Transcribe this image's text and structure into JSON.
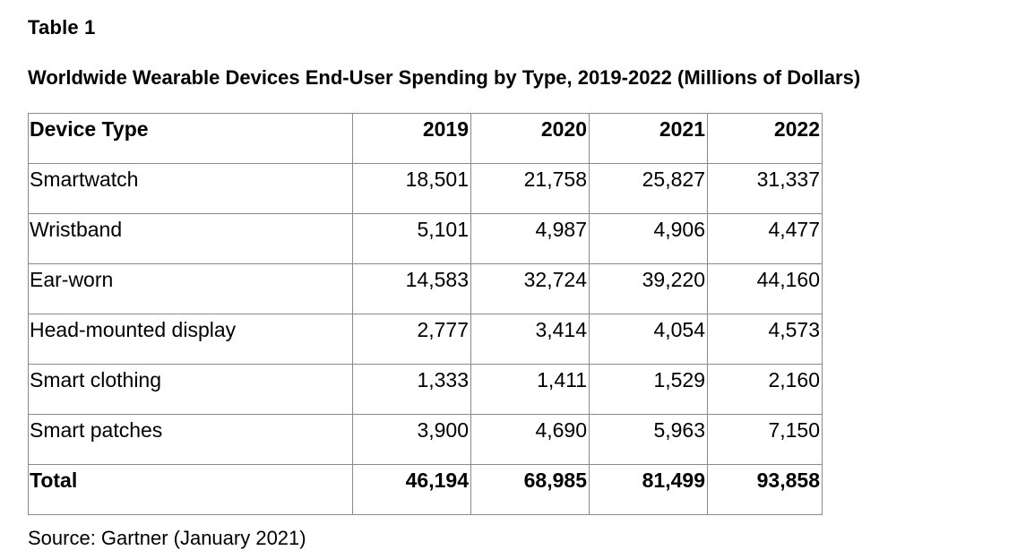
{
  "table_label": "Table 1",
  "title": "Worldwide Wearable Devices End-User Spending by Type, 2019-2022 (Millions of Dollars)",
  "table": {
    "headers": [
      "Device Type",
      "2019",
      "2020",
      "2021",
      "2022"
    ],
    "rows": [
      [
        "Smartwatch",
        "18,501",
        "21,758",
        "25,827",
        "31,337"
      ],
      [
        "Wristband",
        "5,101",
        "4,987",
        "4,906",
        "4,477"
      ],
      [
        "Ear-worn",
        "14,583",
        "32,724",
        "39,220",
        "44,160"
      ],
      [
        "Head-mounted display",
        "2,777",
        "3,414",
        "4,054",
        "4,573"
      ],
      [
        "Smart clothing",
        "1,333",
        "1,411",
        "1,529",
        "2,160"
      ],
      [
        "Smart patches",
        "3,900",
        "4,690",
        "5,963",
        "7,150"
      ]
    ],
    "total": [
      "Total",
      "46,194",
      "68,985",
      "81,499",
      "93,858"
    ]
  },
  "source": "Source: Gartner (January 2021)"
}
